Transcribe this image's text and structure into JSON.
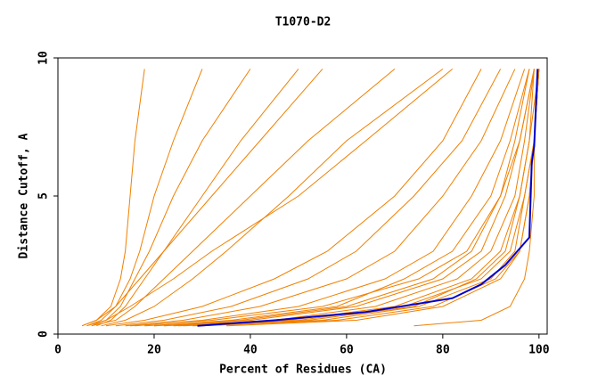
{
  "chart_data": {
    "type": "line",
    "title": "T1070-D2",
    "xlabel": "Percent of Residues (CA)",
    "ylabel": "Distance Cutoff, A",
    "xlim": [
      0,
      101.7
    ],
    "ylim": [
      0,
      10
    ],
    "xticks": [
      0,
      20,
      40,
      60,
      80,
      100
    ],
    "yticks": [
      0,
      5,
      10
    ],
    "series": [
      {
        "color": "#f08000",
        "x": [
          5,
          8,
          11,
          13,
          14,
          15,
          16,
          18
        ],
        "values": [
          0.3,
          0.5,
          1,
          2,
          3,
          5,
          7,
          9.6
        ]
      },
      {
        "color": "#f08000",
        "x": [
          6,
          9,
          12,
          15,
          17,
          20,
          24,
          30
        ],
        "values": [
          0.3,
          0.5,
          1,
          2,
          3,
          5,
          7,
          9.6
        ]
      },
      {
        "color": "#f08000",
        "x": [
          7,
          10,
          13,
          16,
          19,
          24,
          30,
          40
        ],
        "values": [
          0.3,
          0.5,
          1,
          2,
          3,
          5,
          7,
          9.6
        ]
      },
      {
        "color": "#f08000",
        "x": [
          8,
          11,
          14,
          18,
          22,
          30,
          38,
          50
        ],
        "values": [
          0.3,
          0.5,
          1,
          2,
          3,
          5,
          7,
          9.6
        ]
      },
      {
        "color": "#f08000",
        "x": [
          5,
          8,
          12,
          17,
          22,
          32,
          42,
          55
        ],
        "values": [
          0.3,
          0.5,
          1,
          2,
          3,
          5,
          7,
          9.6
        ]
      },
      {
        "color": "#f08000",
        "x": [
          7,
          12,
          16,
          22,
          28,
          40,
          52,
          70
        ],
        "values": [
          0.3,
          0.5,
          1,
          2,
          3,
          5,
          7,
          9.6
        ]
      },
      {
        "color": "#f08000",
        "x": [
          9,
          14,
          20,
          28,
          35,
          48,
          60,
          80
        ],
        "values": [
          0.3,
          0.5,
          1,
          2,
          3,
          5,
          7,
          9.6
        ]
      },
      {
        "color": "#f08000",
        "x": [
          6,
          10,
          15,
          24,
          32,
          50,
          64,
          82
        ],
        "values": [
          0.3,
          0.5,
          1,
          2,
          3,
          5,
          7,
          9.6
        ]
      },
      {
        "color": "#f08000",
        "x": [
          10,
          18,
          30,
          45,
          56,
          70,
          80,
          88
        ],
        "values": [
          0.3,
          0.5,
          1,
          2,
          3,
          5,
          7,
          9.6
        ]
      },
      {
        "color": "#f08000",
        "x": [
          12,
          22,
          36,
          52,
          62,
          74,
          84,
          92
        ],
        "values": [
          0.3,
          0.5,
          1,
          2,
          3,
          5,
          7,
          9.6
        ]
      },
      {
        "color": "#f08000",
        "x": [
          14,
          26,
          42,
          60,
          70,
          80,
          88,
          95
        ],
        "values": [
          0.3,
          0.5,
          1,
          2,
          3,
          5,
          7,
          9.6
        ]
      },
      {
        "color": "#f08000",
        "x": [
          16,
          30,
          50,
          68,
          78,
          86,
          92,
          97
        ],
        "values": [
          0.3,
          0.5,
          1,
          2,
          3,
          5,
          7,
          9.6
        ]
      },
      {
        "color": "#f08000",
        "x": [
          20,
          40,
          62,
          80,
          88,
          93,
          96,
          99
        ],
        "values": [
          0.3,
          0.5,
          1,
          2,
          3,
          5,
          7,
          9.6
        ]
      },
      {
        "color": "#f08000",
        "x": [
          22,
          45,
          66,
          83,
          90,
          95,
          97,
          99
        ],
        "values": [
          0.3,
          0.5,
          1,
          2,
          3,
          5,
          7,
          9.6
        ]
      },
      {
        "color": "#f08000",
        "x": [
          25,
          48,
          70,
          86,
          92,
          96,
          98,
          100
        ],
        "values": [
          0.3,
          0.5,
          1,
          2,
          3,
          5,
          7,
          9.6
        ]
      },
      {
        "color": "#f08000",
        "x": [
          24,
          50,
          72,
          88,
          94,
          97,
          99,
          100
        ],
        "values": [
          0.3,
          0.5,
          1,
          2,
          3,
          5,
          7,
          9.6
        ]
      },
      {
        "color": "#f08000",
        "x": [
          28,
          55,
          75,
          90,
          95,
          97,
          99,
          100
        ],
        "values": [
          0.3,
          0.5,
          1,
          2,
          3,
          5,
          7,
          9.6
        ]
      },
      {
        "color": "#f08000",
        "x": [
          18,
          38,
          60,
          78,
          86,
          92,
          95,
          98
        ],
        "values": [
          0.3,
          0.5,
          1,
          2,
          3,
          5,
          7,
          9.6
        ]
      },
      {
        "color": "#f08000",
        "x": [
          26,
          52,
          74,
          87,
          93,
          96,
          98,
          99
        ],
        "values": [
          0.3,
          0.5,
          1,
          2,
          3,
          5,
          7,
          9.6
        ]
      },
      {
        "color": "#f08000",
        "x": [
          30,
          58,
          78,
          91,
          96,
          98,
          99,
          100
        ],
        "values": [
          0.3,
          0.5,
          1,
          2,
          3,
          5,
          7,
          9.6
        ]
      },
      {
        "color": "#f08000",
        "x": [
          35,
          62,
          80,
          92,
          96,
          98,
          99,
          100
        ],
        "values": [
          0.3,
          0.5,
          1,
          2,
          3,
          5,
          7,
          9.6
        ]
      },
      {
        "color": "#f08000",
        "x": [
          74,
          88,
          94,
          97,
          98,
          99,
          99,
          100
        ],
        "values": [
          0.3,
          0.5,
          1,
          2,
          3,
          5,
          7,
          9.6
        ]
      },
      {
        "color": "#f08000",
        "x": [
          15,
          32,
          55,
          75,
          85,
          92,
          96,
          99
        ],
        "values": [
          0.3,
          0.5,
          1,
          2,
          3,
          5,
          7,
          9.6
        ]
      },
      {
        "color": "#f08000",
        "x": [
          20,
          36,
          58,
          72,
          82,
          90,
          94,
          98
        ],
        "values": [
          0.3,
          0.5,
          1,
          2,
          3,
          5,
          7,
          9.6
        ]
      },
      {
        "color": "#0000cc",
        "x": [
          29,
          45,
          64,
          82,
          88,
          93,
          98,
          98.5,
          99,
          99.7
        ],
        "values": [
          0.3,
          0.5,
          0.8,
          1.3,
          1.8,
          2.5,
          3.5,
          6.2,
          6.8,
          9.6
        ]
      }
    ]
  }
}
